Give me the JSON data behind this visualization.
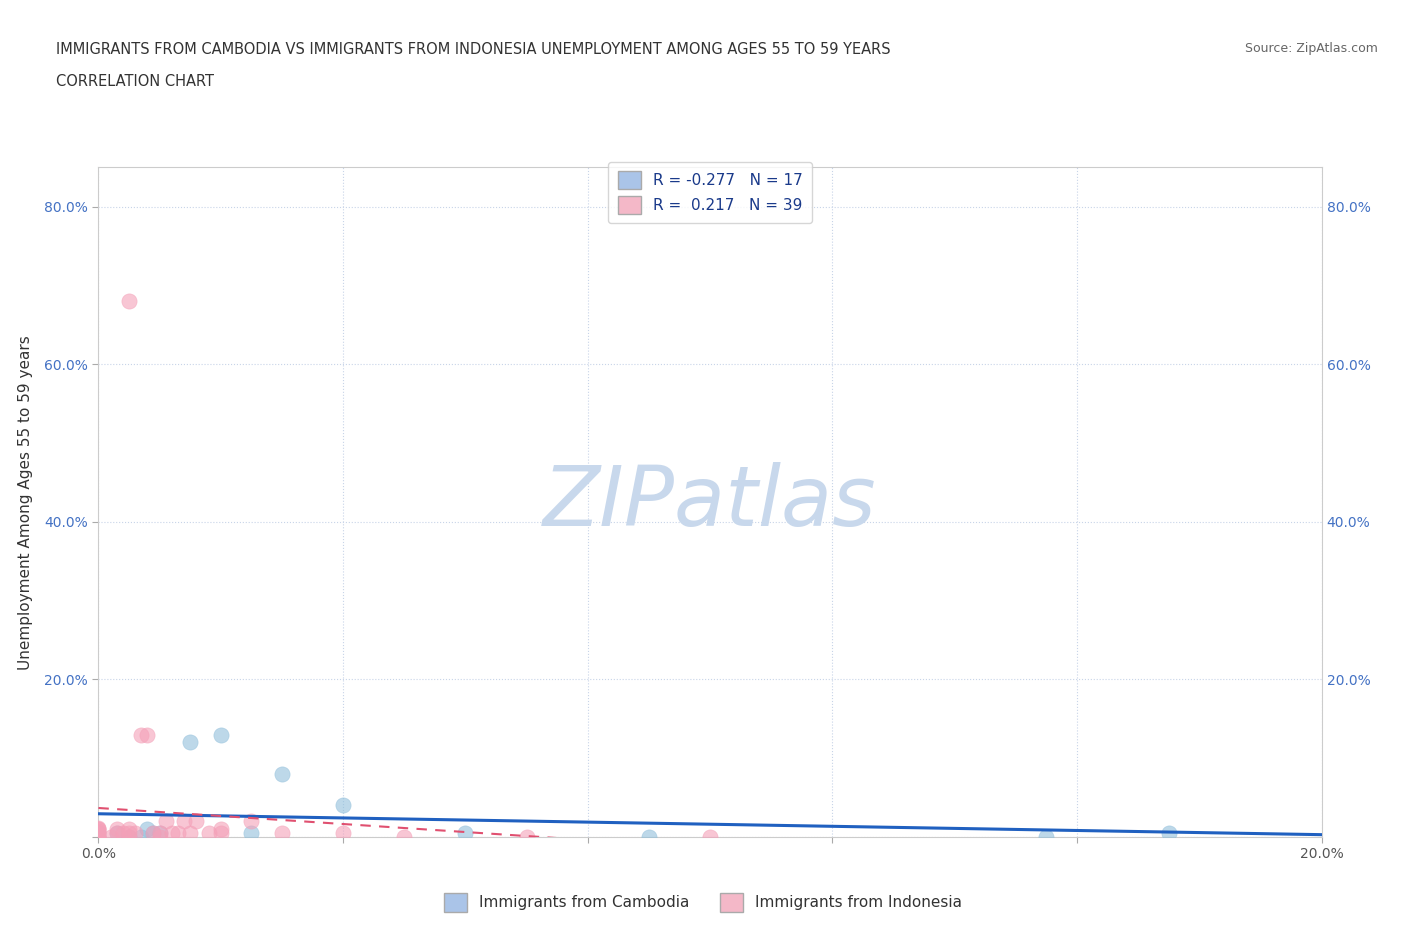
{
  "title_line1": "IMMIGRANTS FROM CAMBODIA VS IMMIGRANTS FROM INDONESIA UNEMPLOYMENT AMONG AGES 55 TO 59 YEARS",
  "title_line2": "CORRELATION CHART",
  "source": "Source: ZipAtlas.com",
  "ylabel": "Unemployment Among Ages 55 to 59 years",
  "xlim": [
    0.0,
    0.2
  ],
  "ylim": [
    0.0,
    0.85
  ],
  "cambodia_color": "#91bfdb",
  "indonesia_color": "#f4a0b8",
  "cambodia_line_color": "#2060c0",
  "indonesia_line_color": "#e05070",
  "watermark_text": "ZIPatlas",
  "watermark_color": "#c8d8ec",
  "background_color": "#ffffff",
  "grid_color": "#c8d4e8",
  "R_cambodia": -0.277,
  "N_cambodia": 17,
  "R_indonesia": 0.217,
  "N_indonesia": 39,
  "legend_color": "#1a3a8a",
  "Cambodia_x": [
    0.0,
    0.0,
    0.003,
    0.005,
    0.007,
    0.008,
    0.009,
    0.01,
    0.015,
    0.02,
    0.025,
    0.03,
    0.04,
    0.06,
    0.09,
    0.155,
    0.175
  ],
  "Cambodia_y": [
    0.0,
    0.005,
    0.005,
    0.0,
    0.0,
    0.01,
    0.005,
    0.005,
    0.12,
    0.13,
    0.005,
    0.08,
    0.04,
    0.005,
    0.0,
    0.0,
    0.005
  ],
  "Indonesia_x": [
    0.0,
    0.0,
    0.0,
    0.0,
    0.0,
    0.0,
    0.0,
    0.0,
    0.0,
    0.0,
    0.002,
    0.003,
    0.003,
    0.004,
    0.005,
    0.005,
    0.005,
    0.005,
    0.006,
    0.007,
    0.008,
    0.009,
    0.01,
    0.01,
    0.011,
    0.012,
    0.013,
    0.014,
    0.015,
    0.016,
    0.018,
    0.02,
    0.02,
    0.025,
    0.03,
    0.04,
    0.05,
    0.07,
    0.1
  ],
  "Indonesia_y": [
    0.0,
    0.0,
    0.0,
    0.0,
    0.005,
    0.005,
    0.007,
    0.01,
    0.01,
    0.012,
    0.0,
    0.005,
    0.01,
    0.005,
    0.0,
    0.005,
    0.01,
    0.68,
    0.005,
    0.13,
    0.13,
    0.005,
    0.0,
    0.005,
    0.02,
    0.005,
    0.005,
    0.02,
    0.005,
    0.02,
    0.005,
    0.005,
    0.01,
    0.02,
    0.005,
    0.005,
    0.0,
    0.0,
    0.0
  ]
}
